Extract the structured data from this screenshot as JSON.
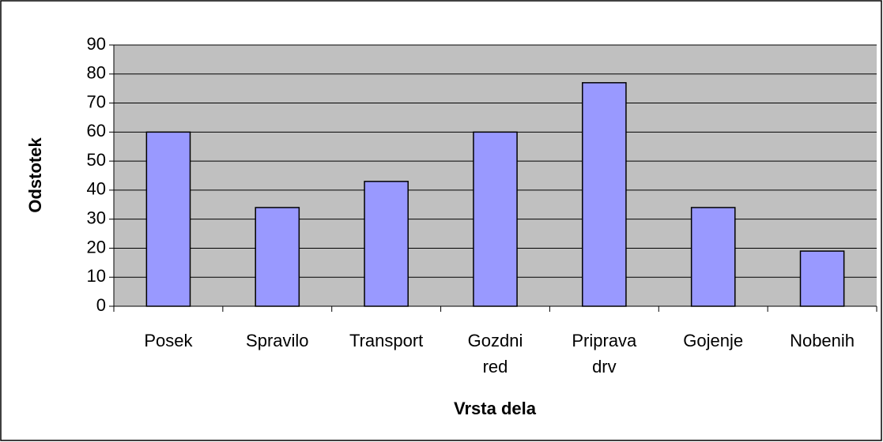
{
  "chart_data": {
    "type": "bar",
    "x_label": "Vrsta dela",
    "y_label": "Odstotek",
    "categories": [
      "Posek",
      "Spravilo",
      "Transport",
      "Gozdni\nred",
      "Priprava\ndrv",
      "Gojenje",
      "Nobenih"
    ],
    "values": [
      60,
      34,
      43,
      60,
      77,
      34,
      19
    ],
    "color": "#9999ff",
    "ylim": [
      0,
      90
    ],
    "yticks": [
      0,
      10,
      20,
      30,
      40,
      50,
      60,
      70,
      80,
      90
    ],
    "grid": true
  }
}
